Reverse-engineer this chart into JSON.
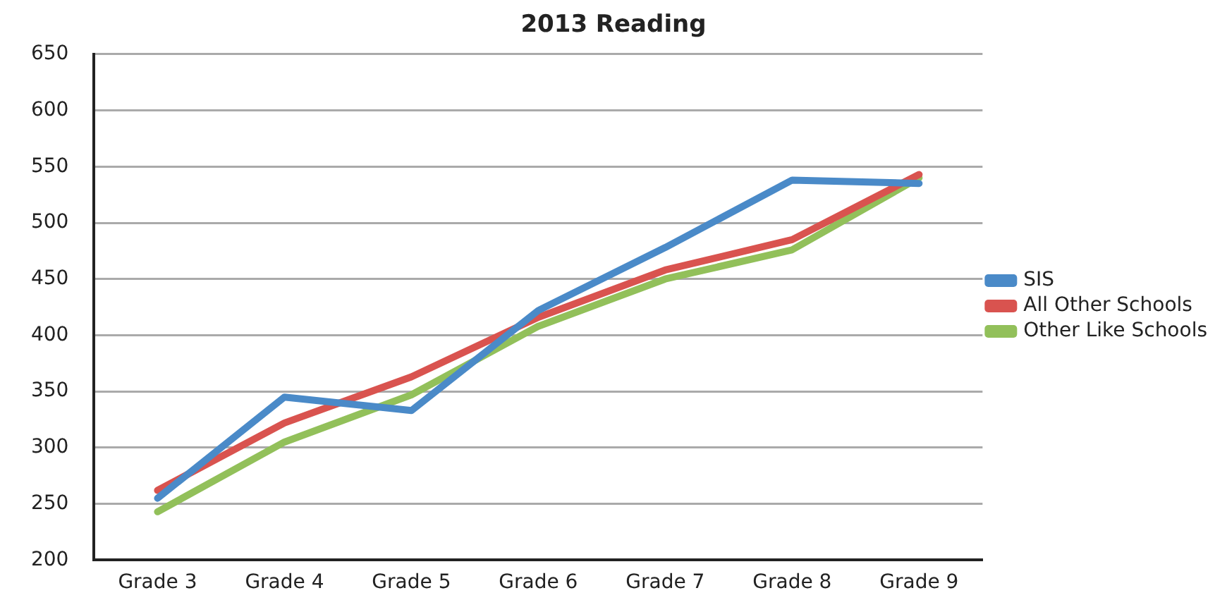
{
  "chart_data": {
    "type": "line",
    "title": "2013 Reading",
    "categories": [
      "Grade 3",
      "Grade 4",
      "Grade 5",
      "Grade 6",
      "Grade 7",
      "Grade 8",
      "Grade 9"
    ],
    "series": [
      {
        "name": "SIS",
        "color": "#4a8ac8",
        "values": [
          255,
          345,
          333,
          422,
          478,
          538,
          535
        ]
      },
      {
        "name": "All Other Schools",
        "color": "#d9534f",
        "values": [
          262,
          322,
          363,
          416,
          458,
          485,
          543
        ]
      },
      {
        "name": "Other Like Schools",
        "color": "#92c05a",
        "values": [
          243,
          305,
          347,
          408,
          450,
          476,
          540
        ]
      }
    ],
    "ylim": [
      200,
      650
    ],
    "yticks": [
      200,
      250,
      300,
      350,
      400,
      450,
      500,
      550,
      600,
      650
    ],
    "grid": "y",
    "legend": "right",
    "marker": "none",
    "line_style": "solid"
  }
}
